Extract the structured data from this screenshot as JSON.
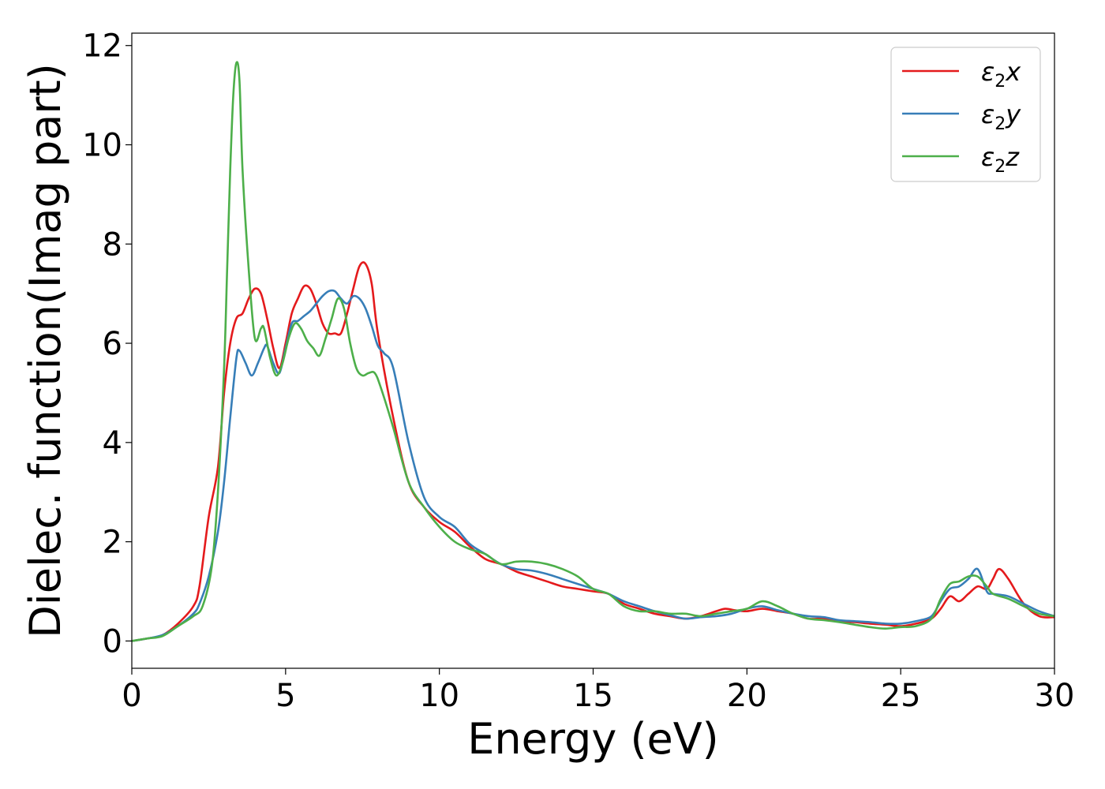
{
  "chart_data": {
    "type": "line",
    "xlabel": "Energy (eV)",
    "ylabel": "Dielec. function(Imag part)",
    "xlim": [
      0,
      30
    ],
    "ylim": [
      -0.55,
      12.25
    ],
    "xticks": [
      0,
      5,
      10,
      15,
      20,
      25,
      30
    ],
    "yticks": [
      0,
      2,
      4,
      6,
      8,
      10,
      12
    ],
    "grid": false,
    "legend": {
      "position": "top-right"
    },
    "series": [
      {
        "name": "ε2x",
        "label_main": "ε",
        "label_sub": "2",
        "label_end": "x",
        "color": "#e41a1c",
        "x": [
          0,
          0.5,
          1.0,
          1.5,
          2.0,
          2.2,
          2.5,
          2.8,
          3.0,
          3.2,
          3.4,
          3.6,
          3.8,
          4.0,
          4.2,
          4.4,
          4.6,
          4.8,
          5.0,
          5.2,
          5.4,
          5.6,
          5.8,
          6.0,
          6.2,
          6.4,
          6.6,
          6.8,
          7.0,
          7.2,
          7.4,
          7.6,
          7.8,
          8.0,
          8.5,
          9.0,
          9.5,
          10.0,
          10.5,
          11.0,
          11.5,
          12.0,
          12.5,
          13.0,
          13.5,
          14.0,
          14.5,
          15.0,
          15.5,
          16.0,
          16.5,
          17.0,
          17.5,
          18.0,
          18.5,
          19.0,
          19.3,
          19.6,
          20.0,
          20.5,
          21.0,
          21.5,
          22.0,
          22.5,
          23.0,
          23.5,
          24.0,
          24.5,
          25.0,
          25.5,
          26.0,
          26.3,
          26.6,
          26.9,
          27.2,
          27.5,
          27.8,
          28.0,
          28.2,
          28.5,
          29.0,
          29.5,
          30.0
        ],
        "y": [
          0,
          0.05,
          0.12,
          0.35,
          0.7,
          1.1,
          2.5,
          3.5,
          5.0,
          6.0,
          6.5,
          6.6,
          6.9,
          7.1,
          7.0,
          6.5,
          5.9,
          5.5,
          6.0,
          6.6,
          6.9,
          7.15,
          7.1,
          6.8,
          6.4,
          6.2,
          6.2,
          6.2,
          6.6,
          7.1,
          7.55,
          7.6,
          7.2,
          6.2,
          4.5,
          3.2,
          2.7,
          2.4,
          2.2,
          1.9,
          1.65,
          1.55,
          1.4,
          1.3,
          1.2,
          1.1,
          1.05,
          1.0,
          0.95,
          0.75,
          0.65,
          0.55,
          0.5,
          0.45,
          0.5,
          0.6,
          0.65,
          0.62,
          0.6,
          0.65,
          0.6,
          0.55,
          0.45,
          0.45,
          0.4,
          0.38,
          0.35,
          0.33,
          0.3,
          0.35,
          0.45,
          0.65,
          0.9,
          0.8,
          0.95,
          1.1,
          1.05,
          1.25,
          1.45,
          1.25,
          0.75,
          0.5,
          0.48
        ]
      },
      {
        "name": "ε2y",
        "label_main": "ε",
        "label_sub": "2",
        "label_end": "y",
        "color": "#377eb8",
        "x": [
          0,
          0.5,
          1.0,
          1.5,
          2.0,
          2.2,
          2.5,
          2.8,
          3.0,
          3.2,
          3.4,
          3.5,
          3.7,
          3.9,
          4.1,
          4.3,
          4.4,
          4.6,
          4.8,
          5.0,
          5.2,
          5.4,
          5.6,
          5.8,
          6.0,
          6.2,
          6.4,
          6.6,
          6.8,
          7.0,
          7.2,
          7.4,
          7.6,
          7.8,
          8.0,
          8.2,
          8.5,
          9.0,
          9.5,
          10.0,
          10.5,
          11.0,
          11.5,
          12.0,
          12.5,
          13.0,
          13.5,
          14.0,
          14.5,
          15.0,
          15.5,
          16.0,
          16.5,
          17.0,
          17.5,
          18.0,
          18.5,
          19.0,
          19.5,
          20.0,
          20.5,
          21.0,
          21.5,
          22.0,
          22.5,
          23.0,
          23.5,
          24.0,
          24.5,
          25.0,
          25.5,
          26.0,
          26.3,
          26.6,
          26.9,
          27.2,
          27.5,
          27.8,
          28.0,
          28.5,
          29.0,
          29.5,
          30.0
        ],
        "y": [
          0,
          0.05,
          0.12,
          0.3,
          0.55,
          0.75,
          1.3,
          2.2,
          3.2,
          4.5,
          5.7,
          5.85,
          5.6,
          5.35,
          5.6,
          5.9,
          5.95,
          5.6,
          5.4,
          5.9,
          6.4,
          6.45,
          6.55,
          6.65,
          6.8,
          6.95,
          7.05,
          7.05,
          6.9,
          6.8,
          6.95,
          6.9,
          6.7,
          6.35,
          5.95,
          5.8,
          5.5,
          4.0,
          2.9,
          2.5,
          2.3,
          1.95,
          1.75,
          1.55,
          1.45,
          1.42,
          1.35,
          1.25,
          1.15,
          1.05,
          0.95,
          0.8,
          0.7,
          0.6,
          0.52,
          0.45,
          0.48,
          0.5,
          0.55,
          0.65,
          0.7,
          0.62,
          0.55,
          0.5,
          0.48,
          0.42,
          0.4,
          0.38,
          0.35,
          0.35,
          0.4,
          0.5,
          0.8,
          1.05,
          1.1,
          1.25,
          1.45,
          1.0,
          0.95,
          0.9,
          0.75,
          0.6,
          0.5
        ]
      },
      {
        "name": "ε2z",
        "label_main": "ε",
        "label_sub": "2",
        "label_end": "z",
        "color": "#4daf4a",
        "x": [
          0,
          0.5,
          1.0,
          1.5,
          2.0,
          2.3,
          2.6,
          2.8,
          3.0,
          3.1,
          3.2,
          3.3,
          3.4,
          3.5,
          3.6,
          3.8,
          4.0,
          4.2,
          4.3,
          4.5,
          4.7,
          4.9,
          5.1,
          5.3,
          5.5,
          5.7,
          5.9,
          6.1,
          6.3,
          6.5,
          6.7,
          6.9,
          7.1,
          7.3,
          7.5,
          7.7,
          7.9,
          8.1,
          8.5,
          9.0,
          9.5,
          10.0,
          10.5,
          11.0,
          11.5,
          12.0,
          12.5,
          13.0,
          13.5,
          14.0,
          14.5,
          15.0,
          15.5,
          16.0,
          16.5,
          17.0,
          17.5,
          18.0,
          18.5,
          19.0,
          19.5,
          20.0,
          20.5,
          21.0,
          21.5,
          22.0,
          22.5,
          23.0,
          23.5,
          24.0,
          24.5,
          25.0,
          25.5,
          26.0,
          26.3,
          26.6,
          26.9,
          27.2,
          27.5,
          27.8,
          28.0,
          28.5,
          29.0,
          29.5,
          30.0
        ],
        "y": [
          0,
          0.05,
          0.1,
          0.3,
          0.5,
          0.7,
          1.5,
          3.0,
          5.5,
          7.5,
          9.5,
          11.0,
          11.65,
          11.3,
          9.5,
          7.5,
          6.1,
          6.3,
          6.3,
          5.7,
          5.35,
          5.6,
          6.1,
          6.4,
          6.3,
          6.05,
          5.9,
          5.75,
          6.1,
          6.5,
          6.9,
          6.7,
          6.0,
          5.5,
          5.35,
          5.4,
          5.4,
          5.1,
          4.3,
          3.2,
          2.7,
          2.3,
          2.0,
          1.85,
          1.75,
          1.55,
          1.6,
          1.6,
          1.55,
          1.45,
          1.3,
          1.05,
          0.95,
          0.7,
          0.6,
          0.6,
          0.55,
          0.55,
          0.5,
          0.55,
          0.6,
          0.65,
          0.8,
          0.7,
          0.55,
          0.45,
          0.42,
          0.38,
          0.33,
          0.28,
          0.25,
          0.28,
          0.3,
          0.45,
          0.85,
          1.15,
          1.2,
          1.3,
          1.3,
          1.1,
          0.95,
          0.85,
          0.7,
          0.55,
          0.5
        ]
      }
    ]
  }
}
